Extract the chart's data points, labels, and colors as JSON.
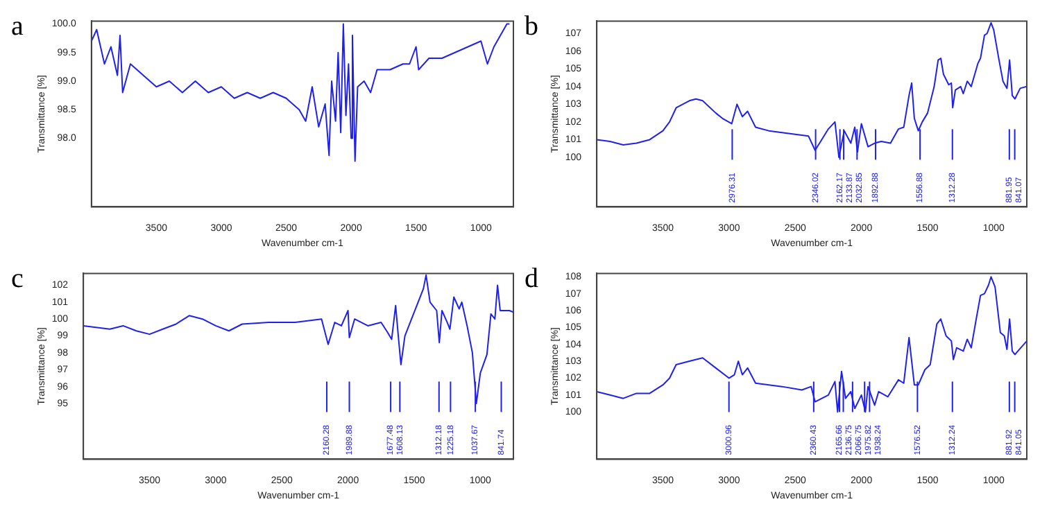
{
  "chart_data": [
    {
      "type": "line",
      "title": "a",
      "xlabel": "Wavenumber cm-1",
      "ylabel": "Transmittance [%]",
      "xlim": [
        4000,
        750
      ],
      "xticks": [
        3500,
        3000,
        2500,
        2000,
        1500,
        1000
      ],
      "ylim": [
        96.8,
        100.05
      ],
      "yticks": [
        {
          "value": 98,
          "label": "98.0"
        },
        98.5,
        {
          "value": 99,
          "label": "99.0"
        },
        99.5,
        {
          "value": 100,
          "label": "100.0"
        }
      ],
      "grid": false,
      "legend": false,
      "marker": "none",
      "line_style": "solid",
      "series": [
        {
          "color": "#2020ee",
          "x": [
            4000,
            3960,
            3900,
            3850,
            3800,
            3780,
            3760,
            3700,
            3600,
            3500,
            3400,
            3300,
            3200,
            3100,
            3000,
            2900,
            2800,
            2700,
            2600,
            2500,
            2400,
            2350,
            2300,
            2250,
            2200,
            2170,
            2150,
            2120,
            2100,
            2080,
            2060,
            2040,
            2020,
            2000,
            1990,
            1970,
            1950,
            1900,
            1850,
            1800,
            1700,
            1600,
            1550,
            1500,
            1480,
            1400,
            1300,
            1200,
            1100,
            1000,
            950,
            900,
            850,
            800,
            780
          ],
          "values": [
            99.7,
            99.9,
            99.3,
            99.6,
            99.1,
            99.8,
            98.8,
            99.3,
            99.1,
            98.9,
            99.0,
            98.8,
            99.0,
            98.8,
            98.9,
            98.7,
            98.8,
            98.7,
            98.8,
            98.7,
            98.5,
            98.3,
            98.9,
            98.2,
            98.6,
            97.7,
            99.0,
            98.3,
            99.5,
            98.1,
            100.0,
            98.4,
            99.3,
            98.0,
            99.8,
            97.6,
            98.9,
            99.0,
            98.8,
            99.2,
            99.2,
            99.3,
            99.3,
            99.6,
            99.2,
            99.4,
            99.4,
            99.5,
            99.6,
            99.7,
            99.3,
            99.6,
            99.8,
            100.0,
            100.0
          ]
        }
      ]
    },
    {
      "type": "line",
      "title": "b",
      "xlabel": "Wavenumber cm-1",
      "ylabel": "Transmittance [%]",
      "xlim": [
        4000,
        750
      ],
      "xticks": [
        3500,
        3000,
        2500,
        2000,
        1500,
        1000
      ],
      "ylim": [
        97.2,
        107.7
      ],
      "yticks": [
        100,
        101,
        102,
        103,
        104,
        105,
        106,
        107
      ],
      "grid": false,
      "legend": false,
      "marker": "none",
      "line_style": "solid",
      "ref_lines": [
        {
          "axis": "x",
          "value": 2976.31,
          "label": "2976.31"
        },
        {
          "axis": "x",
          "value": 2346.02,
          "label": "2346.02"
        },
        {
          "axis": "x",
          "value": 2162.17,
          "label": "2162.17"
        },
        {
          "axis": "x",
          "value": 2133.87,
          "label": "2133.87"
        },
        {
          "axis": "x",
          "value": 2032.85,
          "label": "2032.85"
        },
        {
          "axis": "x",
          "value": 1892.88,
          "label": "1892.88"
        },
        {
          "axis": "x",
          "value": 1556.88,
          "label": "1556.88"
        },
        {
          "axis": "x",
          "value": 1312.28,
          "label": "1312.28"
        },
        {
          "axis": "x",
          "value": 881.95,
          "label": "881.95"
        },
        {
          "axis": "x",
          "value": 841.07,
          "label": "841.07"
        }
      ],
      "series": [
        {
          "color": "#2020ee",
          "x": [
            4000,
            3900,
            3800,
            3700,
            3600,
            3500,
            3450,
            3400,
            3300,
            3250,
            3200,
            3100,
            3050,
            2980,
            2940,
            2900,
            2860,
            2800,
            2700,
            2500,
            2400,
            2350,
            2300,
            2250,
            2200,
            2170,
            2130,
            2080,
            2050,
            2030,
            2000,
            1950,
            1900,
            1850,
            1780,
            1720,
            1680,
            1640,
            1620,
            1600,
            1570,
            1540,
            1500,
            1450,
            1420,
            1400,
            1380,
            1340,
            1320,
            1310,
            1290,
            1250,
            1230,
            1200,
            1170,
            1120,
            1100,
            1070,
            1050,
            1020,
            1000,
            960,
            930,
            900,
            880,
            860,
            840,
            800,
            750
          ],
          "values": [
            101.0,
            100.9,
            100.7,
            100.8,
            101.0,
            101.5,
            102.0,
            102.8,
            103.2,
            103.3,
            103.2,
            102.5,
            102.2,
            101.9,
            103.0,
            102.3,
            102.6,
            101.7,
            101.5,
            101.3,
            101.2,
            100.4,
            101.0,
            101.6,
            102.0,
            100.0,
            101.5,
            100.8,
            101.7,
            100.3,
            101.9,
            100.6,
            100.8,
            100.9,
            100.8,
            101.6,
            101.7,
            103.5,
            104.2,
            102.2,
            101.5,
            102.0,
            102.5,
            104.0,
            105.5,
            105.6,
            104.7,
            104.1,
            104.2,
            102.8,
            103.8,
            104.0,
            103.6,
            104.3,
            104.0,
            105.3,
            105.6,
            106.9,
            107.0,
            107.6,
            107.2,
            105.5,
            104.3,
            103.9,
            105.5,
            103.5,
            103.3,
            103.9,
            104.0
          ]
        }
      ]
    },
    {
      "type": "line",
      "title": "c",
      "xlabel": "Wavenumber cm-1",
      "ylabel": "Transmittance [%]",
      "xlim": [
        4000,
        750
      ],
      "xticks": [
        3500,
        3000,
        2500,
        2000,
        1500,
        1000
      ],
      "ylim": [
        91.7,
        102.7
      ],
      "yticks": [
        95,
        96,
        97,
        98,
        99,
        100,
        101,
        102
      ],
      "grid": false,
      "legend": false,
      "marker": "none",
      "line_style": "solid",
      "ref_lines": [
        {
          "axis": "x",
          "value": 2160.28,
          "label": "2160.28"
        },
        {
          "axis": "x",
          "value": 1989.88,
          "label": "1989.88"
        },
        {
          "axis": "x",
          "value": 1677.48,
          "label": "1677.48"
        },
        {
          "axis": "x",
          "value": 1608.13,
          "label": "1608.13"
        },
        {
          "axis": "x",
          "value": 1312.18,
          "label": "1312.18"
        },
        {
          "axis": "x",
          "value": 1225.18,
          "label": "1225.18"
        },
        {
          "axis": "x",
          "value": 1037.67,
          "label": "1037.67"
        },
        {
          "axis": "x",
          "value": 841.74,
          "label": "841.74"
        }
      ],
      "series": [
        {
          "color": "#2020ee",
          "x": [
            4000,
            3800,
            3700,
            3600,
            3500,
            3400,
            3300,
            3200,
            3100,
            3000,
            2900,
            2800,
            2600,
            2400,
            2200,
            2150,
            2100,
            2050,
            2000,
            1990,
            1950,
            1850,
            1750,
            1700,
            1670,
            1640,
            1620,
            1600,
            1570,
            1520,
            1470,
            1430,
            1410,
            1380,
            1330,
            1310,
            1290,
            1250,
            1230,
            1200,
            1160,
            1140,
            1100,
            1060,
            1040,
            1030,
            1000,
            950,
            920,
            890,
            870,
            850,
            780,
            750
          ],
          "values": [
            99.6,
            99.4,
            99.6,
            99.3,
            99.1,
            99.4,
            99.7,
            100.2,
            100.0,
            99.6,
            99.3,
            99.7,
            99.8,
            99.8,
            100.0,
            98.5,
            99.8,
            99.6,
            100.5,
            98.9,
            100.0,
            99.6,
            99.8,
            99.2,
            98.8,
            100.8,
            99.0,
            97.3,
            99.0,
            100.0,
            101.0,
            101.8,
            102.6,
            101.0,
            100.5,
            98.6,
            100.5,
            99.8,
            99.4,
            101.3,
            100.6,
            101.0,
            99.6,
            98.0,
            96.0,
            95.0,
            96.8,
            97.9,
            100.3,
            100.0,
            102.0,
            100.5,
            100.5,
            100.4
          ]
        }
      ]
    },
    {
      "type": "line",
      "title": "d",
      "xlabel": "Wavenumber cm-1",
      "ylabel": "Transmittance [%]",
      "xlim": [
        4000,
        750
      ],
      "xticks": [
        3500,
        3000,
        2500,
        2000,
        1500,
        1000
      ],
      "ylim": [
        97.2,
        108.2
      ],
      "yticks": [
        100,
        101,
        102,
        103,
        104,
        105,
        106,
        107,
        108
      ],
      "grid": false,
      "legend": false,
      "marker": "none",
      "line_style": "solid",
      "ref_lines": [
        {
          "axis": "x",
          "value": 3000.96,
          "label": "3000.96"
        },
        {
          "axis": "x",
          "value": 2360.43,
          "label": "2360.43"
        },
        {
          "axis": "x",
          "value": 2165.66,
          "label": "2165.66"
        },
        {
          "axis": "x",
          "value": 2136.75,
          "label": "2136.75"
        },
        {
          "axis": "x",
          "value": 2066.75,
          "label": "2066.75"
        },
        {
          "axis": "x",
          "value": 1975.82,
          "label": "1975.82"
        },
        {
          "axis": "x",
          "value": 1938.24,
          "label": "1938.24"
        },
        {
          "axis": "x",
          "value": 1576.52,
          "label": "1576.52"
        },
        {
          "axis": "x",
          "value": 1312.24,
          "label": "1312.24"
        },
        {
          "axis": "x",
          "value": 881.92,
          "label": "881.92"
        },
        {
          "axis": "x",
          "value": 841.05,
          "label": "841.05"
        }
      ],
      "series": [
        {
          "color": "#2020ee",
          "x": [
            4000,
            3900,
            3800,
            3700,
            3600,
            3500,
            3450,
            3400,
            3300,
            3200,
            3100,
            3000,
            2960,
            2930,
            2900,
            2860,
            2800,
            2600,
            2450,
            2380,
            2350,
            2250,
            2200,
            2180,
            2150,
            2120,
            2080,
            2050,
            2000,
            1970,
            1950,
            1900,
            1870,
            1800,
            1720,
            1680,
            1640,
            1600,
            1570,
            1520,
            1480,
            1430,
            1400,
            1360,
            1320,
            1305,
            1280,
            1230,
            1200,
            1170,
            1130,
            1100,
            1070,
            1040,
            1020,
            990,
            950,
            920,
            900,
            880,
            860,
            840,
            750
          ],
          "values": [
            101.2,
            101.0,
            100.8,
            101.1,
            101.1,
            101.6,
            102.0,
            102.8,
            103.0,
            103.2,
            102.6,
            102.0,
            102.2,
            103.0,
            102.2,
            102.6,
            101.7,
            101.5,
            101.3,
            101.5,
            100.6,
            101.0,
            101.8,
            100.0,
            102.4,
            100.8,
            101.2,
            100.2,
            101.0,
            100.0,
            101.5,
            100.4,
            101.2,
            100.9,
            101.9,
            101.7,
            104.4,
            101.6,
            101.6,
            102.5,
            102.8,
            105.2,
            105.5,
            104.5,
            104.2,
            103.1,
            103.8,
            103.6,
            104.3,
            103.8,
            105.6,
            106.9,
            107.0,
            107.5,
            108.0,
            107.4,
            104.7,
            104.5,
            103.7,
            105.5,
            103.6,
            103.4,
            104.2
          ]
        }
      ]
    }
  ]
}
